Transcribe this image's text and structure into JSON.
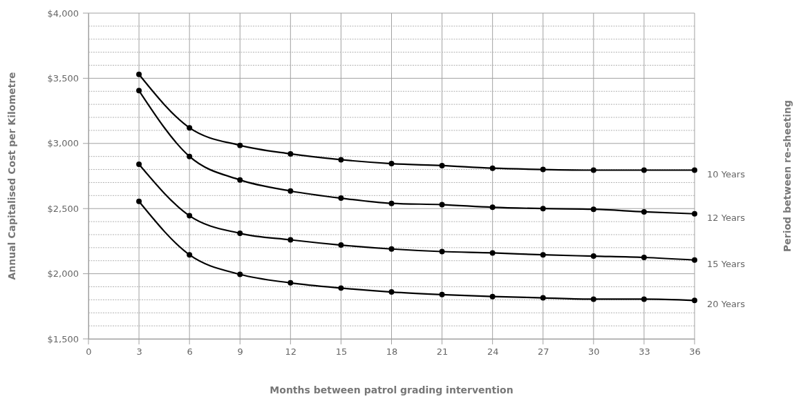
{
  "chart_data": {
    "type": "line",
    "xlabel": "Months between patrol grading intervention",
    "ylabel": "Annual Capitalised Cost per Kilometre",
    "annotations": [
      "Period between re-sheeting"
    ],
    "x": [
      3,
      6,
      9,
      12,
      15,
      18,
      21,
      24,
      27,
      30,
      33,
      36
    ],
    "xlim": [
      0,
      36
    ],
    "xticks": [
      0,
      3,
      6,
      9,
      12,
      15,
      18,
      21,
      24,
      27,
      30,
      33,
      36
    ],
    "ylim": [
      1500,
      4000
    ],
    "yticks": [
      {
        "value": 1500,
        "label": "$1,500"
      },
      {
        "value": 1600,
        "label": null
      },
      {
        "value": 1700,
        "label": null
      },
      {
        "value": 1800,
        "label": null
      },
      {
        "value": 1900,
        "label": null
      },
      {
        "value": 2000,
        "label": "$2,000"
      },
      {
        "value": 2100,
        "label": null
      },
      {
        "value": 2200,
        "label": null
      },
      {
        "value": 2300,
        "label": null
      },
      {
        "value": 2400,
        "label": null
      },
      {
        "value": 2500,
        "label": "$2,500"
      },
      {
        "value": 2600,
        "label": null
      },
      {
        "value": 2700,
        "label": null
      },
      {
        "value": 2800,
        "label": null
      },
      {
        "value": 2900,
        "label": null
      },
      {
        "value": 3000,
        "label": "$3,000"
      },
      {
        "value": 3100,
        "label": null
      },
      {
        "value": 3200,
        "label": null
      },
      {
        "value": 3300,
        "label": null
      },
      {
        "value": 3400,
        "label": null
      },
      {
        "value": 3500,
        "label": "$3,500"
      },
      {
        "value": 3600,
        "label": null
      },
      {
        "value": 3700,
        "label": null
      },
      {
        "value": 3800,
        "label": null
      },
      {
        "value": 3900,
        "label": null
      },
      {
        "value": 4000,
        "label": "$4,000"
      }
    ],
    "grid": true,
    "legend": false,
    "marker": "circle",
    "line_style": "solid",
    "series": [
      {
        "name": "10 Years",
        "color": "#000000",
        "values": [
          3530,
          3120,
          2985,
          2920,
          2875,
          2845,
          2830,
          2810,
          2800,
          2795,
          2795,
          2795
        ]
      },
      {
        "name": "12 Years",
        "color": "#000000",
        "values": [
          3405,
          2900,
          2720,
          2635,
          2580,
          2540,
          2530,
          2510,
          2500,
          2495,
          2475,
          2460
        ]
      },
      {
        "name": "15 Years",
        "color": "#000000",
        "values": [
          2840,
          2445,
          2310,
          2260,
          2220,
          2190,
          2170,
          2160,
          2145,
          2135,
          2125,
          2105
        ]
      },
      {
        "name": "20 Years",
        "color": "#000000",
        "values": [
          2555,
          2145,
          1995,
          1930,
          1890,
          1860,
          1840,
          1825,
          1815,
          1805,
          1805,
          1795
        ]
      }
    ]
  }
}
